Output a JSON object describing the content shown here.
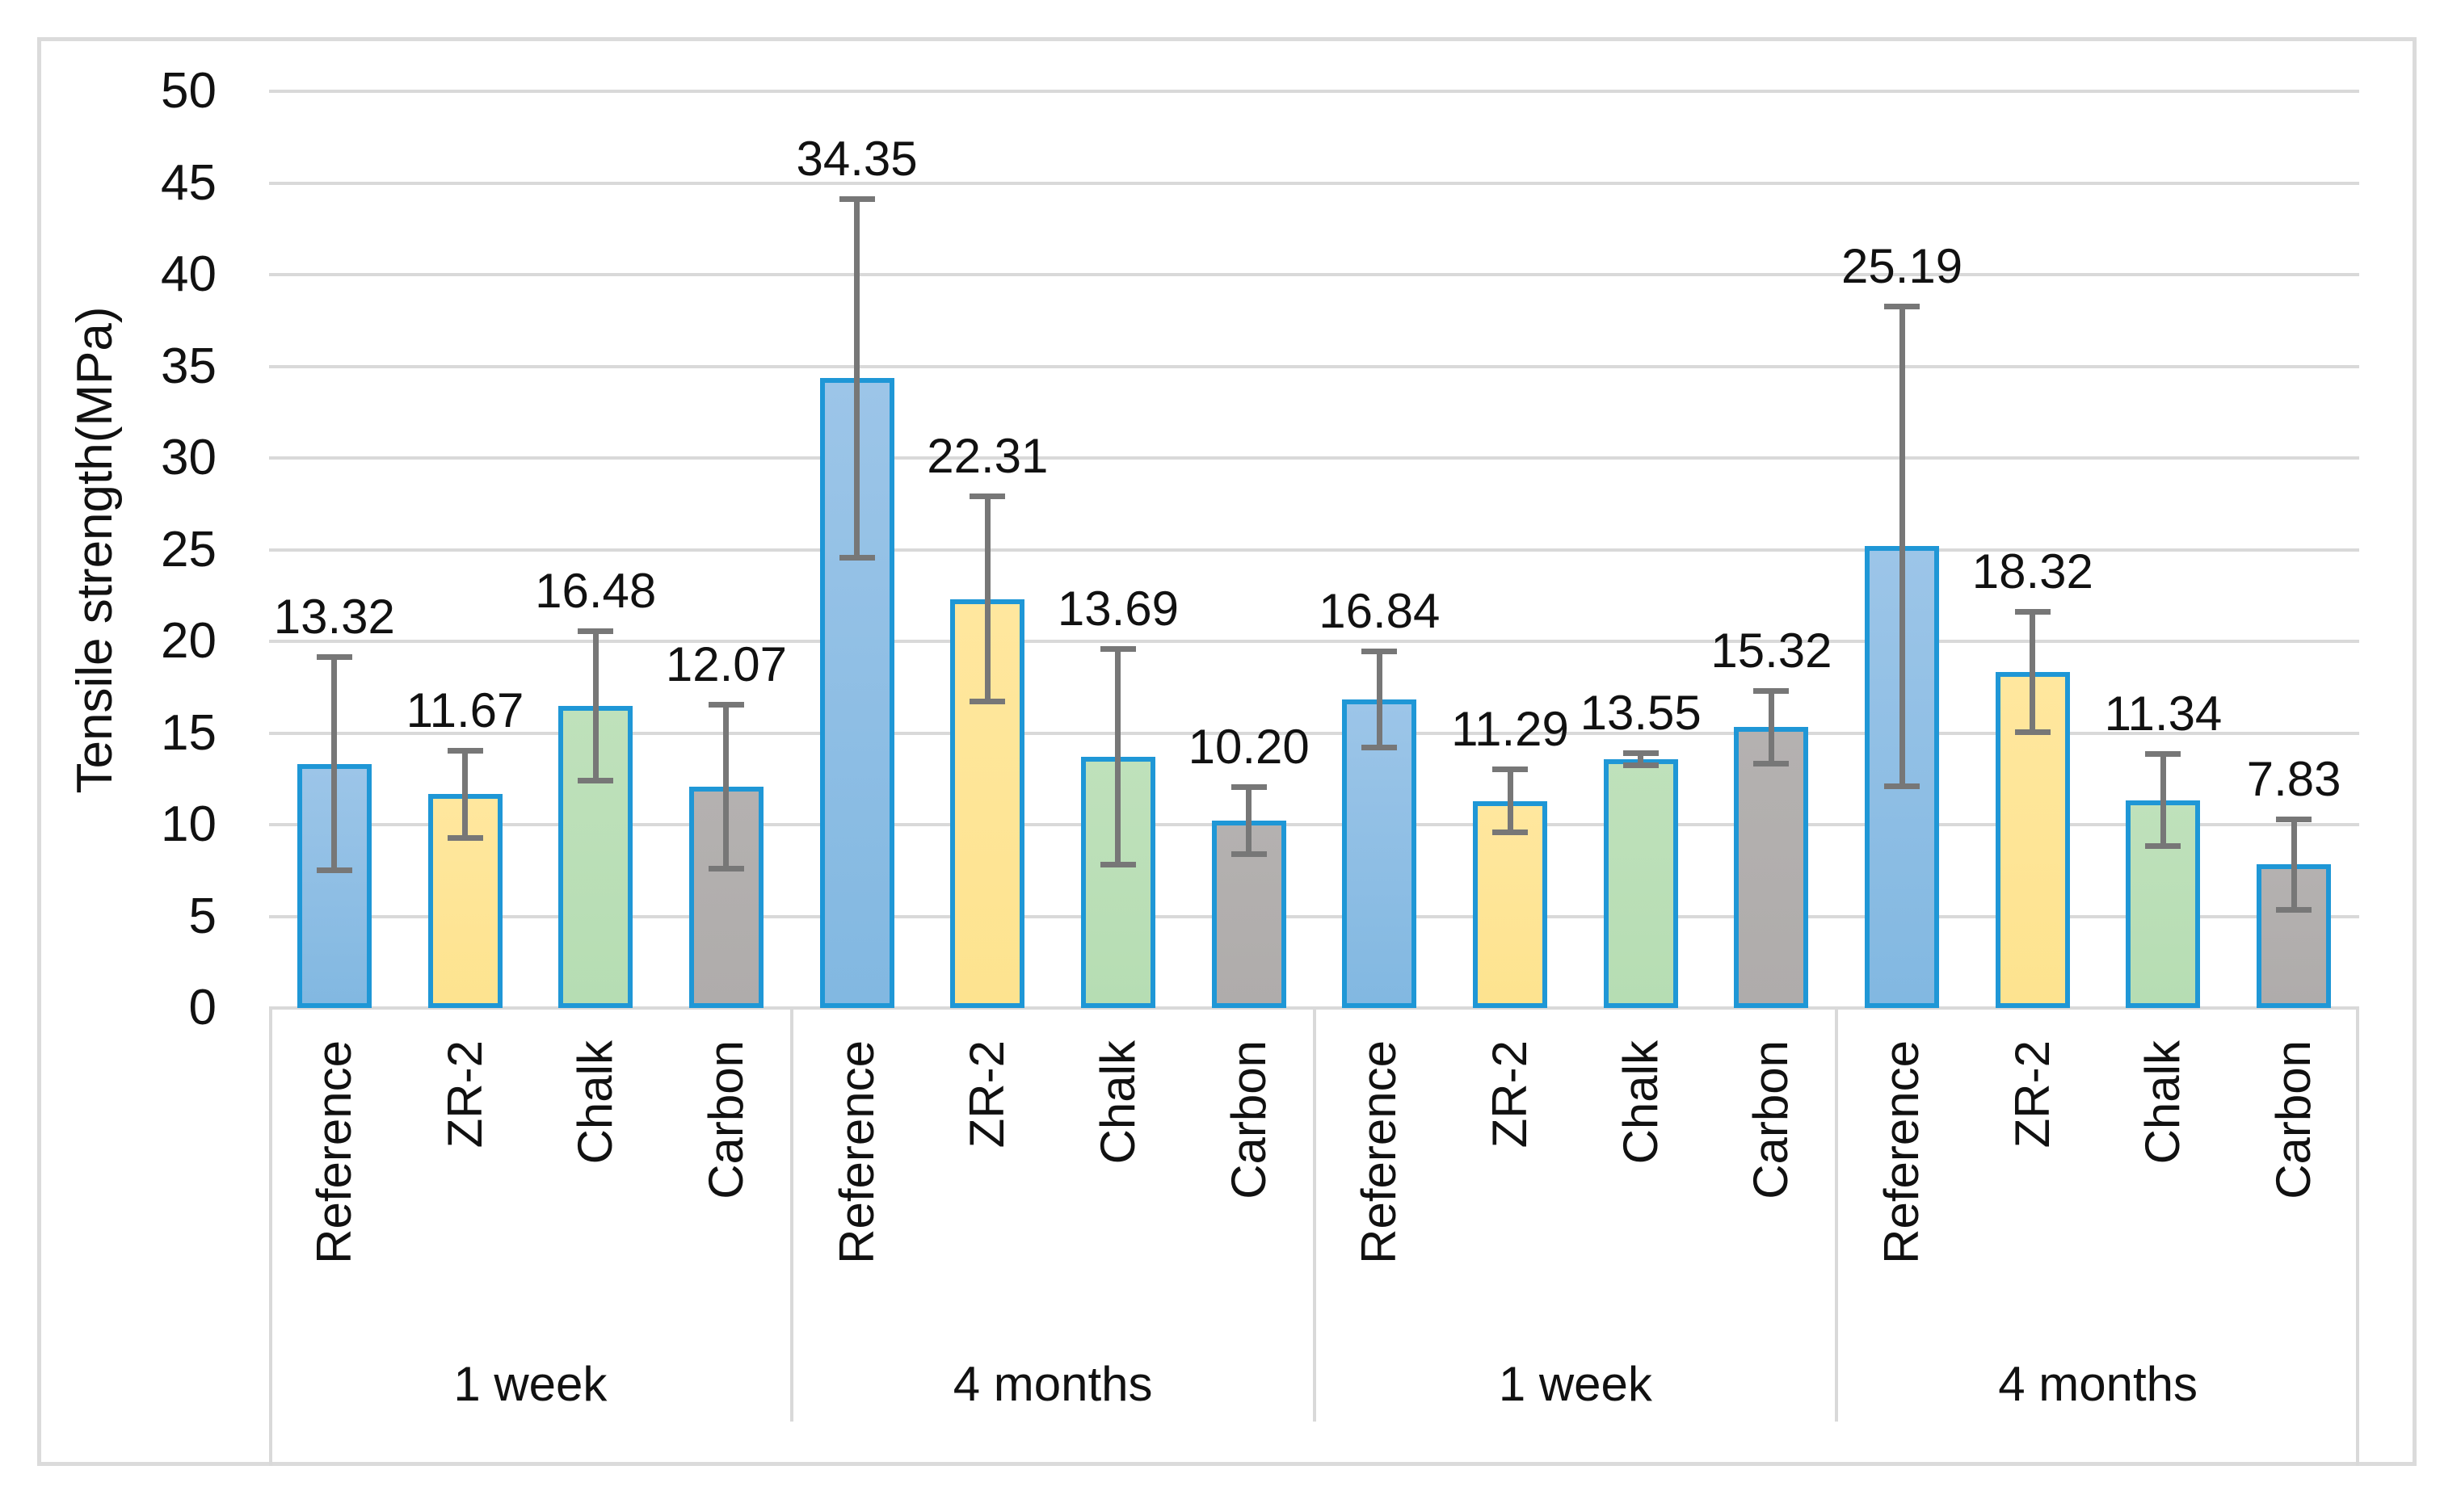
{
  "figure": {
    "background": "#FFFFFF",
    "border_color": "#DBDBDB"
  },
  "chart_data": {
    "type": "bar",
    "title": "",
    "xlabel": "",
    "ylabel": "Tensile strength(MPa)",
    "ylim": [
      0,
      50
    ],
    "ytick_step": 5,
    "yticks": [
      0,
      5,
      10,
      15,
      20,
      25,
      30,
      35,
      40,
      45,
      50
    ],
    "grid": true,
    "legend": false,
    "categories": [
      "Reference",
      "ZR-2",
      "Chalk",
      "Carbon"
    ],
    "group_labels": [
      "1 week",
      "4 months",
      "1 week",
      "4 months"
    ],
    "groups": [
      {
        "label": "1 week",
        "bars": [
          {
            "category": "Reference",
            "value": 13.32,
            "label": "13.32",
            "error": 5.85
          },
          {
            "category": "ZR-2",
            "value": 11.67,
            "label": "11.67",
            "error": 2.4
          },
          {
            "category": "Chalk",
            "value": 16.48,
            "label": "16.48",
            "error": 4.1
          },
          {
            "category": "Carbon",
            "value": 12.07,
            "label": "12.07",
            "error": 4.5
          }
        ]
      },
      {
        "label": "4 months",
        "bars": [
          {
            "category": "Reference",
            "value": 34.35,
            "label": "34.35",
            "error": 9.8
          },
          {
            "category": "ZR-2",
            "value": 22.31,
            "label": "22.31",
            "error": 5.6
          },
          {
            "category": "Chalk",
            "value": 13.69,
            "label": "13.69",
            "error": 5.9
          },
          {
            "category": "Carbon",
            "value": 10.2,
            "label": "10.20",
            "error": 1.85
          }
        ]
      },
      {
        "label": "1 week",
        "bars": [
          {
            "category": "Reference",
            "value": 16.84,
            "label": "16.84",
            "error": 2.65
          },
          {
            "category": "ZR-2",
            "value": 11.29,
            "label": "11.29",
            "error": 1.75
          },
          {
            "category": "Chalk",
            "value": 13.55,
            "label": "13.55",
            "error": 0.35
          },
          {
            "category": "Carbon",
            "value": 15.32,
            "label": "15.32",
            "error": 2.0
          }
        ]
      },
      {
        "label": "4 months",
        "bars": [
          {
            "category": "Reference",
            "value": 25.19,
            "label": "25.19",
            "error": 13.1
          },
          {
            "category": "ZR-2",
            "value": 18.32,
            "label": "18.32",
            "error": 3.3
          },
          {
            "category": "Chalk",
            "value": 11.34,
            "label": "11.34",
            "error": 2.55
          },
          {
            "category": "Carbon",
            "value": 7.83,
            "label": "7.83",
            "error": 2.5
          }
        ]
      }
    ],
    "bar_style": {
      "border_color": "#1F97D6",
      "fills": {
        "Reference": {
          "top": "#9CC5E8",
          "bottom": "#82B8E1"
        },
        "ZR-2": {
          "top": "#FFE79E",
          "bottom": "#FDE38F"
        },
        "Chalk": {
          "top": "#BFE1BB",
          "bottom": "#B6DDB3"
        },
        "Carbon": {
          "top": "#B4B1B0",
          "bottom": "#AFACAB"
        }
      }
    },
    "error_bar_color": "#777777",
    "gridline_color": "#D9D9D9",
    "layout_hints": {
      "axis_label_rotation_deg": 90,
      "data_labels": "above error bars",
      "legend_position": "none"
    }
  }
}
